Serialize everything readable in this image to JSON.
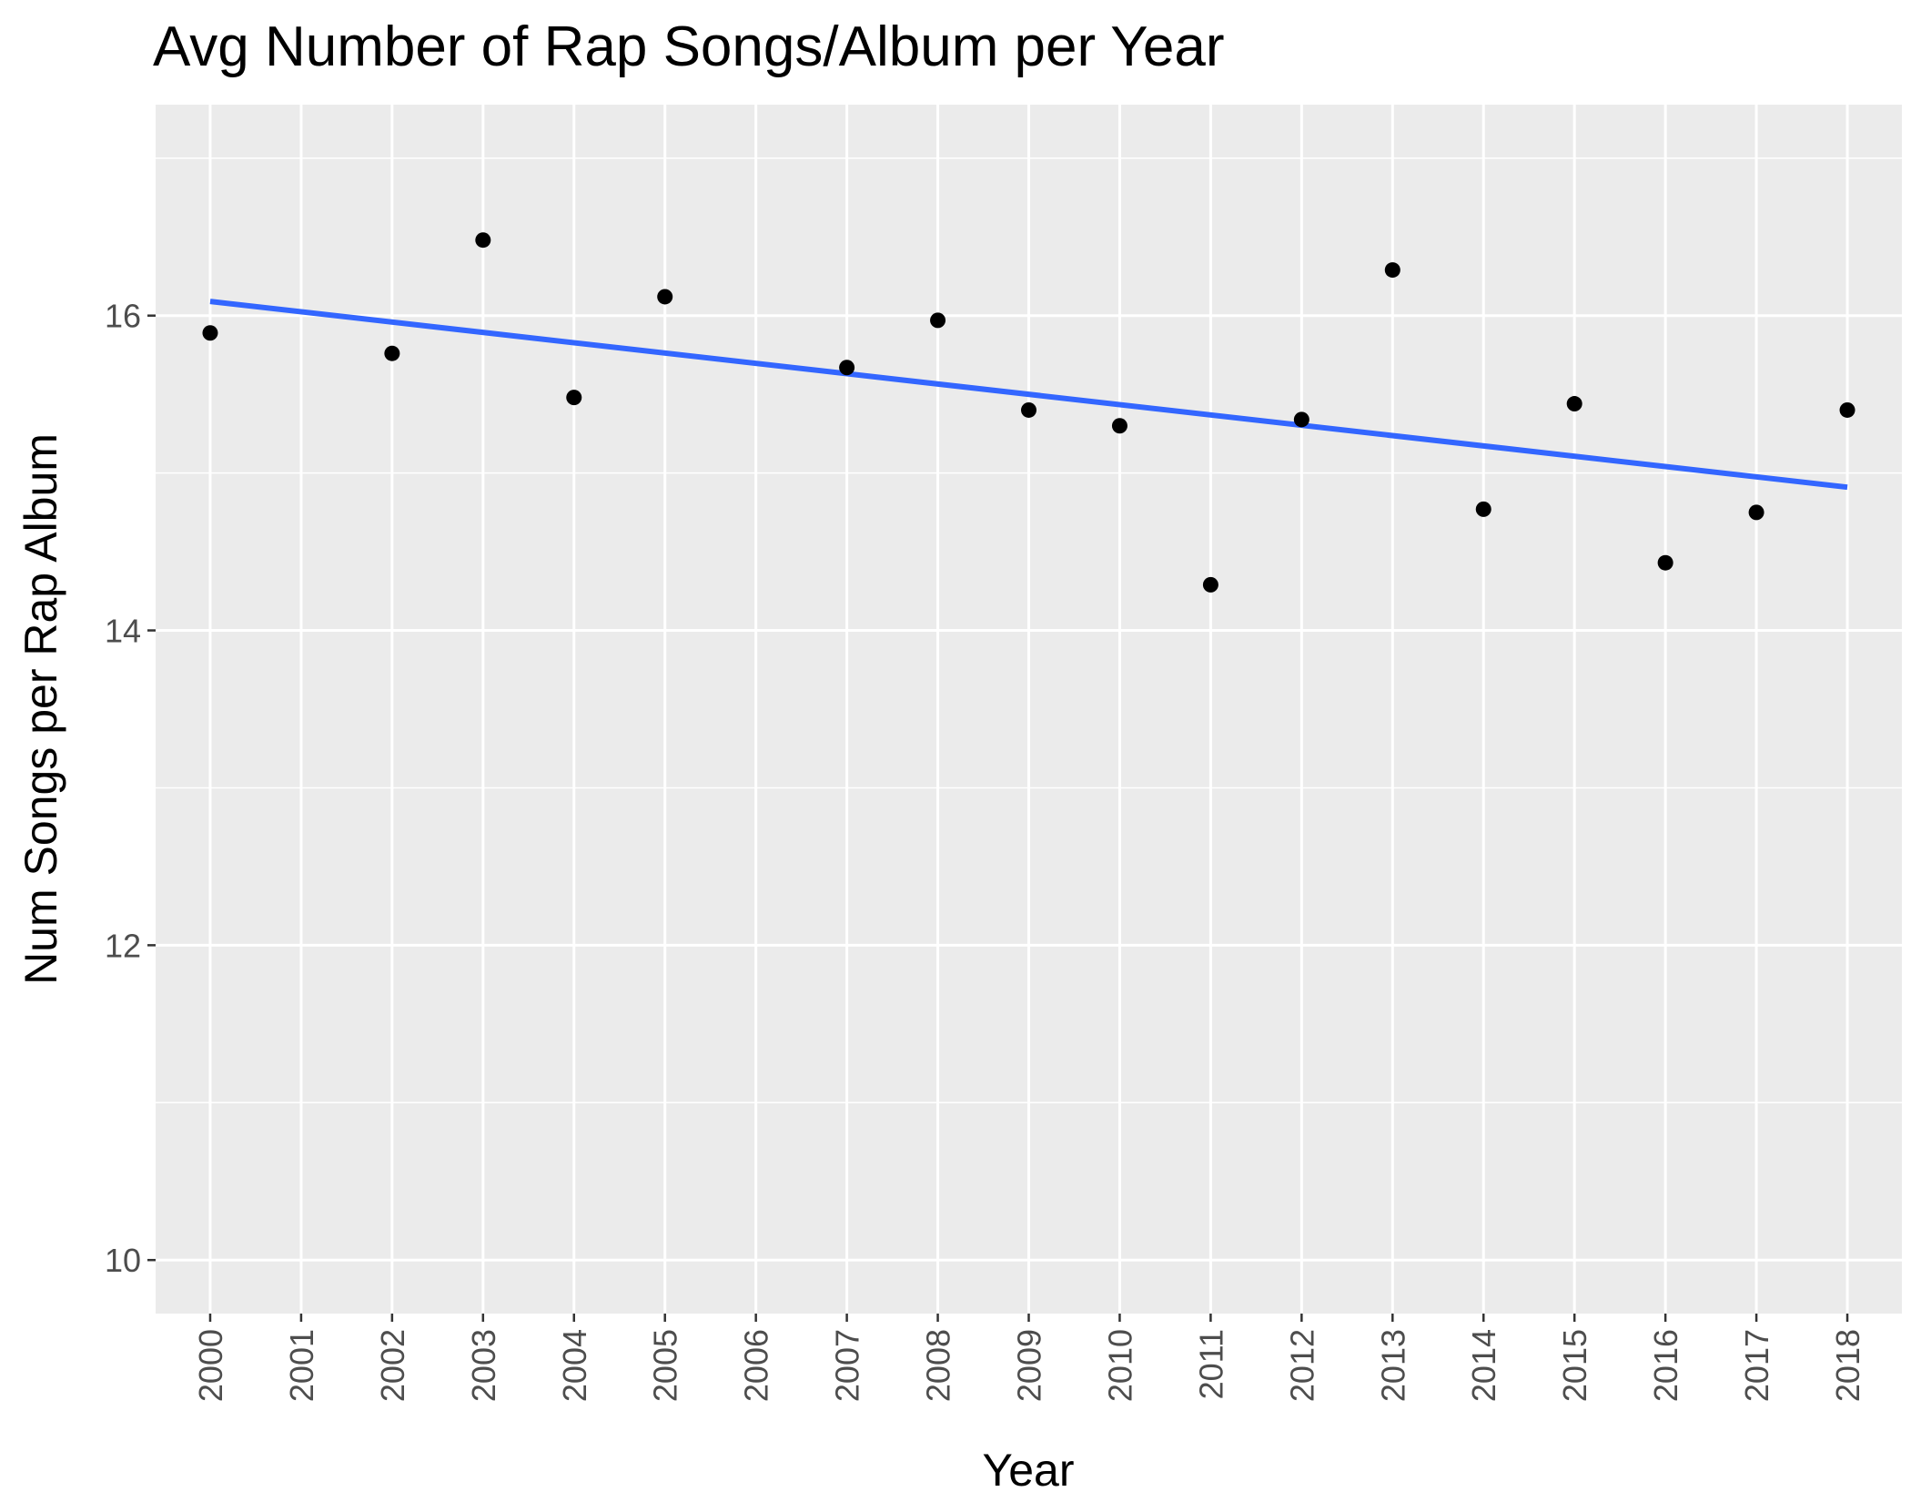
{
  "chart_data": {
    "type": "scatter",
    "title": "Avg Number of Rap Songs/Album per Year",
    "xlabel": "Year",
    "ylabel": "Num Songs per Rap Album",
    "x": [
      2000,
      2002,
      2003,
      2004,
      2005,
      2007,
      2008,
      2009,
      2010,
      2011,
      2012,
      2013,
      2014,
      2015,
      2016,
      2017,
      2018
    ],
    "y": [
      15.89,
      15.76,
      16.48,
      15.48,
      16.12,
      15.67,
      15.97,
      15.4,
      15.3,
      14.29,
      15.34,
      16.29,
      14.77,
      15.44,
      14.43,
      14.75,
      15.4
    ],
    "x_ticks": [
      "2000",
      "2001",
      "2002",
      "2003",
      "2004",
      "2005",
      "2006",
      "2007",
      "2008",
      "2009",
      "2010",
      "2011",
      "2012",
      "2013",
      "2014",
      "2015",
      "2016",
      "2017",
      "2018"
    ],
    "y_ticks": [
      "10",
      "12",
      "14",
      "16"
    ],
    "xlim": [
      1999.4,
      2018.6
    ],
    "ylim": [
      9.66,
      17.34
    ],
    "trend_line": {
      "x": [
        2000,
        2018
      ],
      "y": [
        16.09,
        14.91
      ]
    },
    "grid": true,
    "colors": {
      "panel": "#ebebeb",
      "grid": "#ffffff",
      "point": "#000000",
      "trend": "#3366ff",
      "tick_text": "#4d4d4d"
    }
  }
}
